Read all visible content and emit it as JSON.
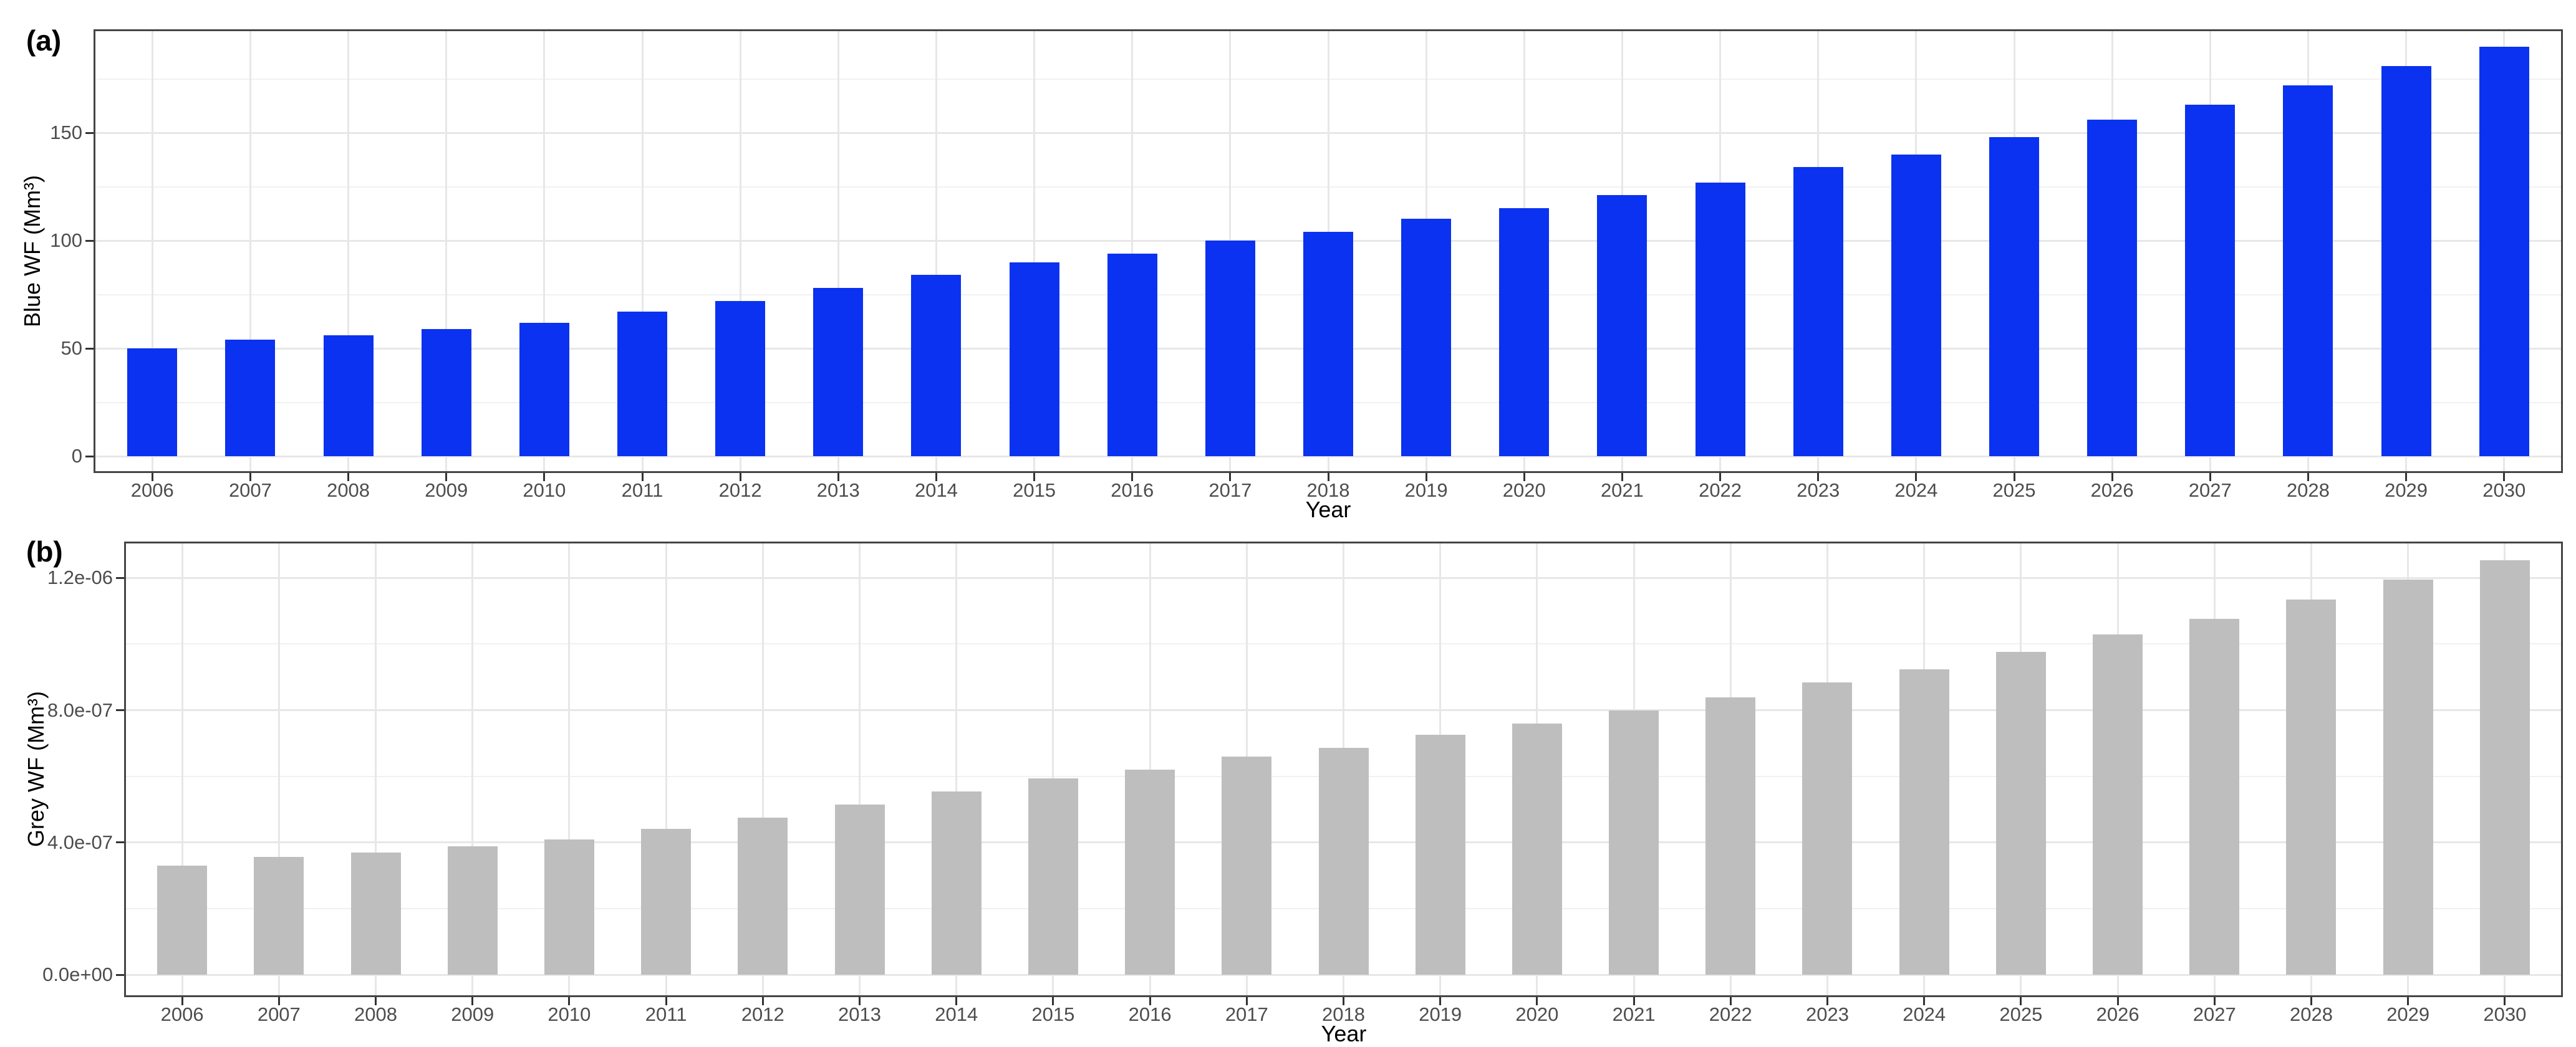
{
  "figure": {
    "description": "Two stacked bar charts of projected water footprint by year",
    "background": "#ffffff"
  },
  "chart_data": [
    {
      "type": "bar",
      "title": "(a)",
      "categories": [
        2006,
        2007,
        2008,
        2009,
        2010,
        2011,
        2012,
        2013,
        2014,
        2015,
        2016,
        2017,
        2018,
        2019,
        2020,
        2021,
        2022,
        2023,
        2024,
        2025,
        2026,
        2027,
        2028,
        2029,
        2030
      ],
      "values": [
        50,
        54,
        56,
        59,
        62,
        67,
        72,
        78,
        84,
        90,
        94,
        100,
        104,
        110,
        115,
        121,
        127,
        134,
        140,
        148,
        156,
        163,
        172,
        181,
        190
      ],
      "xlabel": "Year",
      "ylabel": "Blue WF (Mm³)",
      "bar_color": "#0b32f0",
      "ylim": [
        0,
        198
      ],
      "yticks": {
        "values": [
          0,
          50,
          100,
          150
        ],
        "labels": [
          "0",
          "50",
          "100",
          "150"
        ]
      },
      "yticks_minor": [
        25,
        75,
        125,
        175
      ],
      "grid": "on",
      "legend": "none"
    },
    {
      "type": "bar",
      "title": "(b)",
      "categories": [
        2006,
        2007,
        2008,
        2009,
        2010,
        2011,
        2012,
        2013,
        2014,
        2015,
        2016,
        2017,
        2018,
        2019,
        2020,
        2021,
        2022,
        2023,
        2024,
        2025,
        2026,
        2027,
        2028,
        2029,
        2030
      ],
      "values": [
        3.3e-07,
        3.56e-07,
        3.7e-07,
        3.89e-07,
        4.09e-07,
        4.42e-07,
        4.75e-07,
        5.15e-07,
        5.54e-07,
        5.94e-07,
        6.2e-07,
        6.6e-07,
        6.86e-07,
        7.26e-07,
        7.59e-07,
        7.99e-07,
        8.38e-07,
        8.84e-07,
        9.24e-07,
        9.77e-07,
        1.03e-06,
        1.076e-06,
        1.135e-06,
        1.195e-06,
        1.254e-06
      ],
      "xlabel": "Year",
      "ylabel": "Grey WF (Mm³)",
      "bar_color": "#bebebe",
      "ylim": [
        0,
        1.31e-06
      ],
      "yticks": {
        "values": [
          0,
          4e-07,
          8e-07,
          1.2e-06
        ],
        "labels": [
          "0.0e+00",
          "4.0e-07",
          "8.0e-07",
          "1.2e-06"
        ]
      },
      "yticks_minor": [
        2e-07,
        6e-07,
        1e-06
      ],
      "grid": "on",
      "legend": "none"
    }
  ]
}
